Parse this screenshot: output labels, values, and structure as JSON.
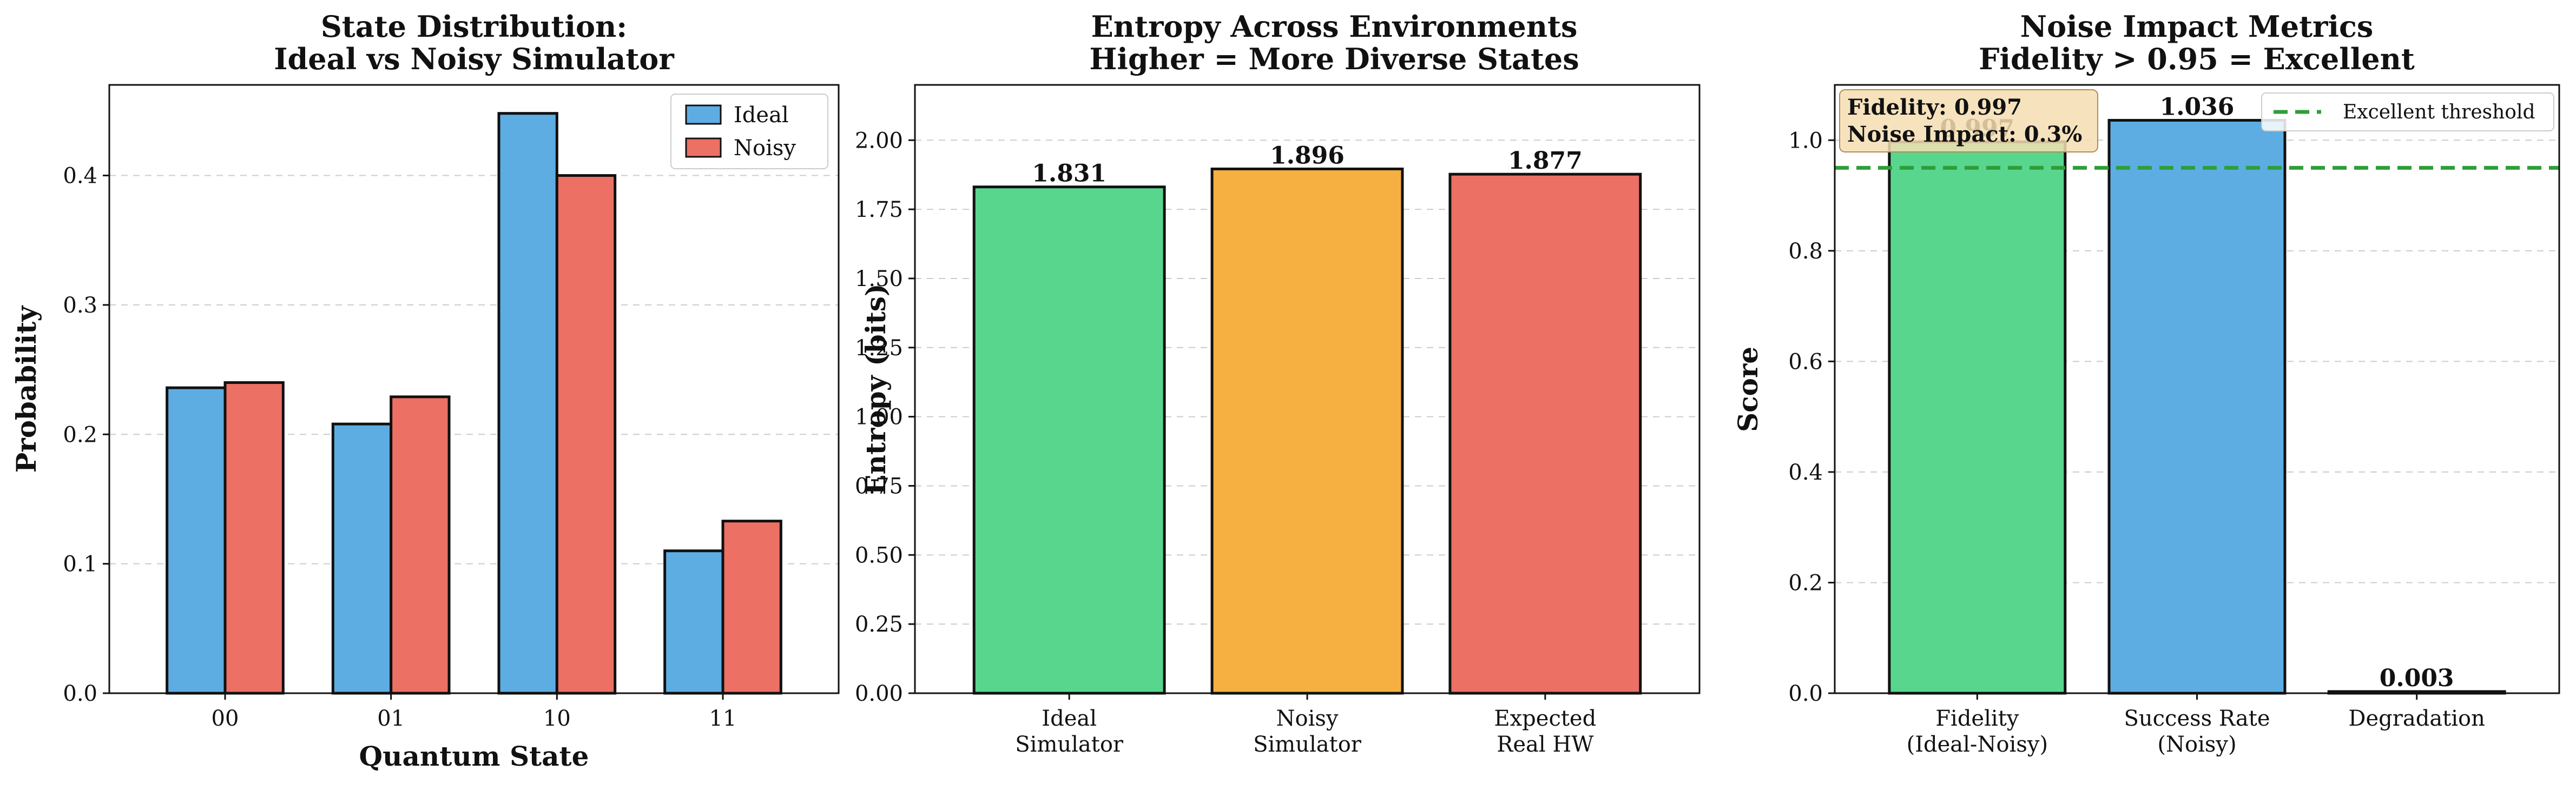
{
  "colors": {
    "ideal": "#5DADE2",
    "noisy": "#EC7063",
    "green": "#58D68D",
    "orange": "#F5B041",
    "red": "#EC7063",
    "blue": "#5DADE2",
    "threshold": "#2E9E3A",
    "annotation_bg": "#F5DEB3"
  },
  "chart_data": [
    {
      "type": "bar",
      "title_lines": [
        "State Distribution:",
        "Ideal vs Noisy Simulator"
      ],
      "xlabel": "Quantum State",
      "ylabel": "Probability",
      "categories": [
        "00",
        "01",
        "10",
        "11"
      ],
      "series": [
        {
          "name": "Ideal",
          "values": [
            0.236,
            0.208,
            0.448,
            0.11
          ]
        },
        {
          "name": "Noisy",
          "values": [
            0.24,
            0.229,
            0.4,
            0.133
          ]
        }
      ],
      "ylim": [
        0,
        0.47
      ],
      "yticks": [
        "0.0",
        "0.1",
        "0.2",
        "0.3",
        "0.4"
      ],
      "ytick_values": [
        0,
        0.1,
        0.2,
        0.3,
        0.4
      ],
      "grid": true,
      "legend": "upper right"
    },
    {
      "type": "bar",
      "title_lines": [
        "Entropy Across Environments",
        "Higher = More Diverse States"
      ],
      "xlabel": "",
      "ylabel": "Entropy (bits)",
      "categories": [
        [
          "Ideal",
          "Simulator"
        ],
        [
          "Noisy",
          "Simulator"
        ],
        [
          "Expected",
          "Real HW"
        ]
      ],
      "values": [
        1.831,
        1.896,
        1.877
      ],
      "value_labels": [
        "1.831",
        "1.896",
        "1.877"
      ],
      "ylim": [
        0,
        2.2
      ],
      "yticks": [
        "0.00",
        "0.25",
        "0.50",
        "0.75",
        "1.00",
        "1.25",
        "1.50",
        "1.75",
        "2.00"
      ],
      "ytick_values": [
        0,
        0.25,
        0.5,
        0.75,
        1.0,
        1.25,
        1.5,
        1.75,
        2.0
      ],
      "grid": true
    },
    {
      "type": "bar",
      "title_lines": [
        "Noise Impact Metrics",
        "Fidelity > 0.95 = Excellent"
      ],
      "xlabel": "",
      "ylabel": "Score",
      "categories": [
        [
          "Fidelity",
          "(Ideal-Noisy)"
        ],
        [
          "Success Rate",
          "(Noisy)"
        ],
        [
          "Degradation"
        ]
      ],
      "values": [
        0.997,
        1.036,
        0.003
      ],
      "value_labels": [
        "0.997",
        "1.036",
        "0.003"
      ],
      "ylim": [
        0,
        1.1
      ],
      "yticks": [
        "0.0",
        "0.2",
        "0.4",
        "0.6",
        "0.8",
        "1.0"
      ],
      "ytick_values": [
        0,
        0.2,
        0.4,
        0.6,
        0.8,
        1.0
      ],
      "threshold": {
        "value": 0.95,
        "label": "Excellent threshold"
      },
      "annotation_lines": [
        "Fidelity: 0.997",
        "Noise Impact: 0.3%"
      ],
      "grid": true,
      "legend": "upper right"
    }
  ]
}
